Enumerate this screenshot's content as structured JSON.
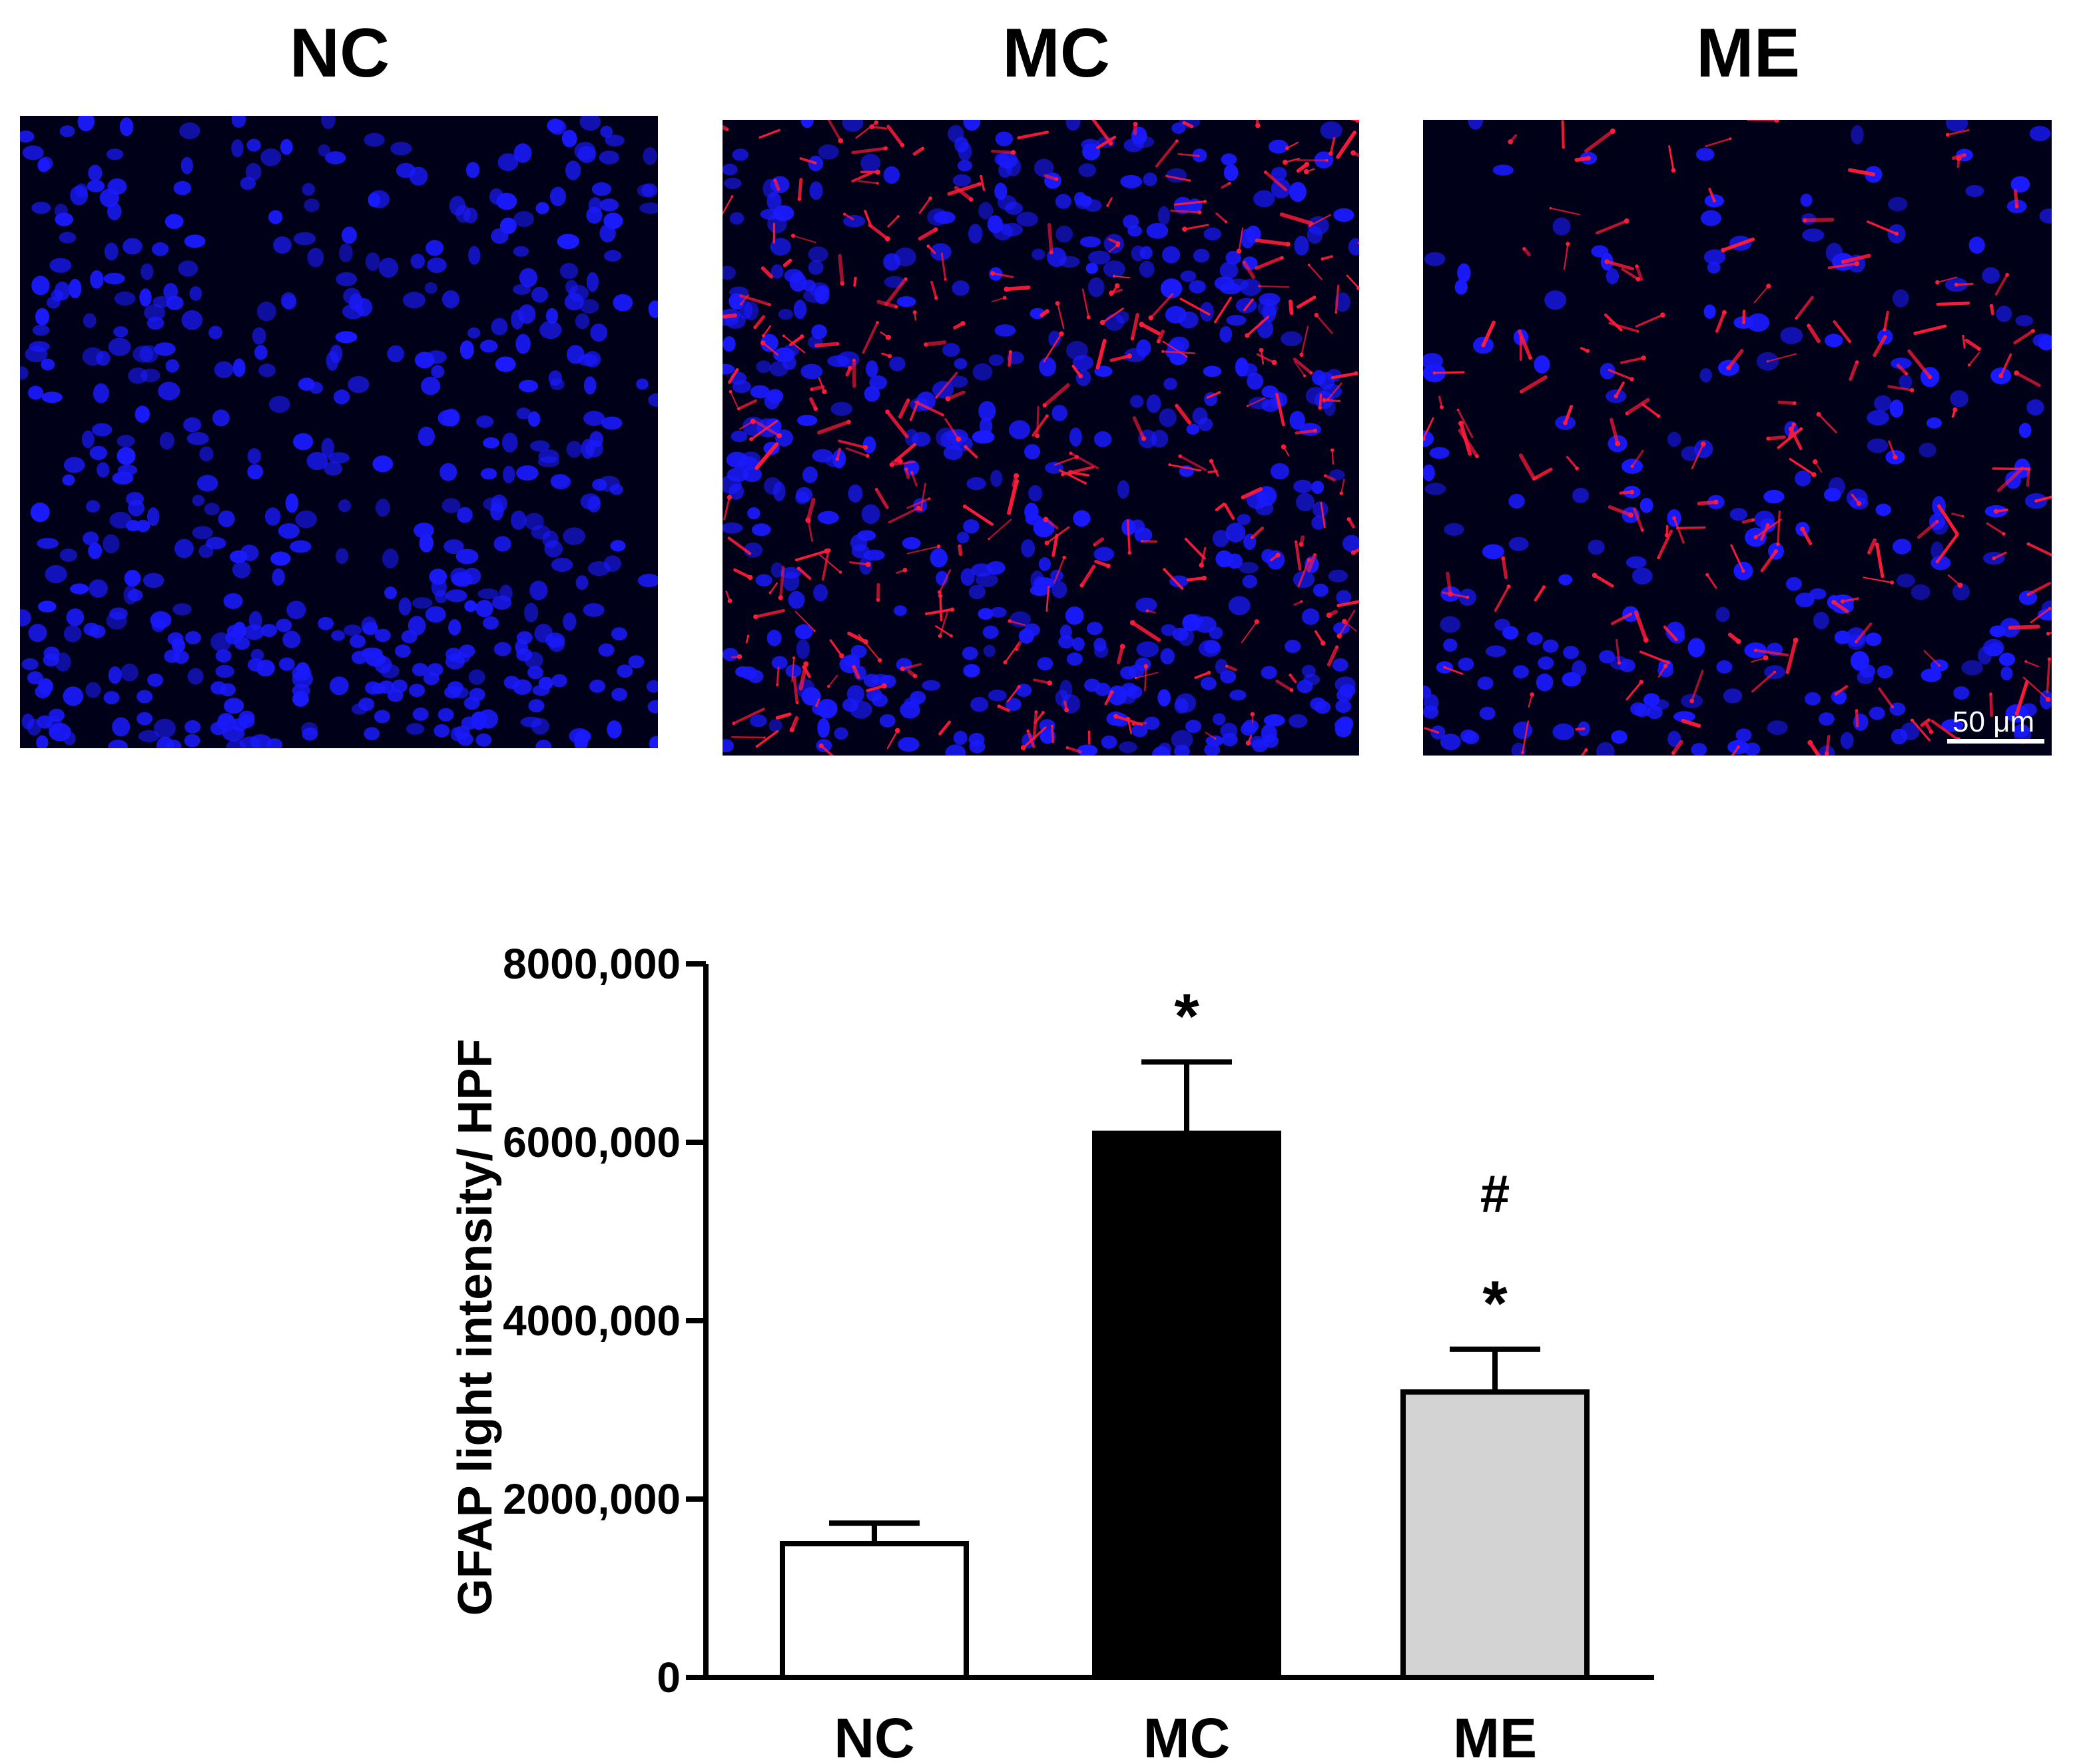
{
  "panels": [
    {
      "label": "NC",
      "condition": "no-stain"
    },
    {
      "label": "MC",
      "condition": "strong-stain"
    },
    {
      "label": "ME",
      "condition": "moderate-stain"
    }
  ],
  "colors": {
    "nucleus_blue": "#1a1aff",
    "gfap_red": "#ff1a3a",
    "background": "#000018"
  },
  "scale_bar": {
    "label": "50 μm"
  },
  "chart_data": {
    "type": "bar",
    "categories": [
      "NC",
      "MC",
      "ME"
    ],
    "values": [
      1500000,
      6100000,
      3200000
    ],
    "errors": [
      230000,
      800000,
      480000
    ],
    "bar_colors": [
      "#ffffff",
      "#000000",
      "#d3d3d3"
    ],
    "annotations": [
      [],
      [
        "*"
      ],
      [
        "*",
        "#"
      ]
    ],
    "ylabel": "GFAP light intensity/ HPF",
    "xlabel": "",
    "ylim": [
      0,
      8000000
    ],
    "yticks": [
      0,
      2000000,
      4000000,
      6000000,
      8000000
    ],
    "ytick_labels": [
      "0",
      "2000,000",
      "4000,000",
      "6000,000",
      "8000,000"
    ],
    "grid": false,
    "legend": "none"
  }
}
